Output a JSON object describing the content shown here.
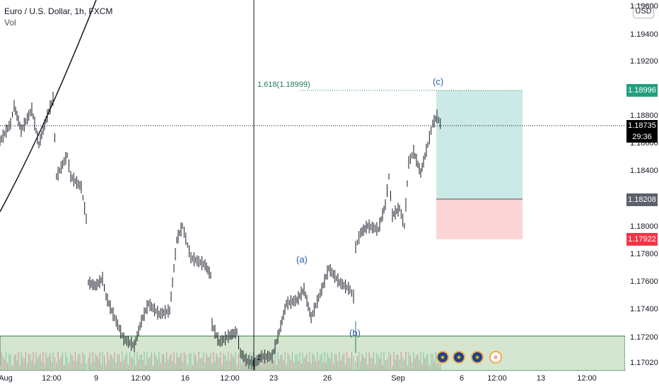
{
  "symbol": {
    "title": "Euro / U.S. Dollar, 1h, FXCM",
    "indicator": "Vol"
  },
  "currency_button": "USD",
  "price_axis": {
    "ticks": [
      "1.19600",
      "1.19400",
      "1.19200",
      "1.18800",
      "1.18600",
      "1.18400",
      "1.18000",
      "1.17800",
      "1.17600",
      "1.17400",
      "1.17200",
      "1.17020"
    ]
  },
  "time_axis": {
    "labels": [
      "Aug",
      "12:00",
      "9",
      "12:00",
      "16",
      "12:00",
      "23",
      "26",
      "Sep",
      "6",
      "12:00",
      "13",
      "12:00"
    ]
  },
  "price_tags": {
    "target": "1.18996",
    "current": "1.18735",
    "countdown": "29:36",
    "entry": "1.18208",
    "stop": "1.17922"
  },
  "colors": {
    "target": "#229f7e",
    "current": "#000000",
    "entry": "#5d606b",
    "stop": "#f23645",
    "profit_zone": "#cbe9e6",
    "loss_zone": "#fbd5d5",
    "support_zone": "#d4e6d0"
  },
  "annotations": {
    "fib_label": "1.618(1.18999)",
    "wave_a": "(a)",
    "wave_b": "(b)",
    "wave_c": "(c)",
    "marker": "2"
  },
  "events": [
    {
      "icon": "eu-flag-icon"
    },
    {
      "icon": "eu-flag-icon"
    },
    {
      "icon": "eu-flag-icon"
    },
    {
      "icon": "us-flag-icon"
    }
  ]
}
